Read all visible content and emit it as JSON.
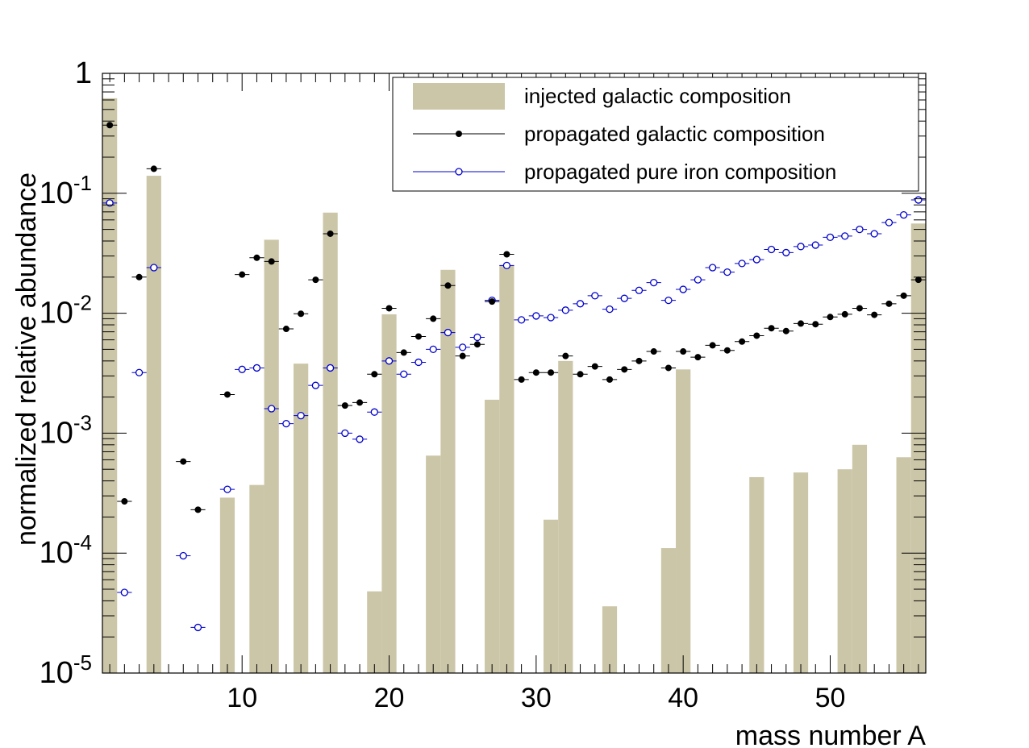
{
  "chart_data": {
    "type": "bar",
    "xlabel": "mass number A",
    "ylabel": "normalized relative abundance",
    "xlim": [
      0.5,
      56.5
    ],
    "ylim": [
      1e-05,
      1
    ],
    "yscale": "log",
    "x_ticks": [
      10,
      20,
      30,
      40,
      50
    ],
    "x_tick_labels": [
      "10",
      "20",
      "30",
      "40",
      "50"
    ],
    "y_ticks": [
      {
        "value": 1,
        "base": "1",
        "exp": ""
      },
      {
        "value": 0.1,
        "base": "10",
        "exp": "-1"
      },
      {
        "value": 0.01,
        "base": "10",
        "exp": "-2"
      },
      {
        "value": 0.001,
        "base": "10",
        "exp": "-3"
      },
      {
        "value": 0.0001,
        "base": "10",
        "exp": "-4"
      },
      {
        "value": 1e-05,
        "base": "10",
        "exp": "-5"
      }
    ],
    "legend": {
      "placement": "top-right",
      "entries": [
        {
          "label": "injected galactic composition",
          "style": "fill"
        },
        {
          "label": "propagated galactic composition",
          "style": "filled-marker"
        },
        {
          "label": "propagated pure iron composition",
          "style": "open-marker"
        }
      ]
    },
    "colors": {
      "bars": "#ccc6a8",
      "galactic": "#000000",
      "iron": "#0000cc"
    },
    "series": [
      {
        "name": "injected galactic composition",
        "kind": "bar",
        "points": [
          [
            1,
            0.62
          ],
          [
            4,
            0.14
          ],
          [
            9,
            0.00029
          ],
          [
            11,
            0.00037
          ],
          [
            12,
            0.041
          ],
          [
            14,
            0.0038
          ],
          [
            16,
            0.069
          ],
          [
            19,
            4.8e-05
          ],
          [
            20,
            0.0098
          ],
          [
            23,
            0.00065
          ],
          [
            24,
            0.023
          ],
          [
            27,
            0.0019
          ],
          [
            28,
            0.025
          ],
          [
            31,
            0.00019
          ],
          [
            32,
            0.004
          ],
          [
            35,
            3.6e-05
          ],
          [
            39,
            0.00011
          ],
          [
            40,
            0.0034
          ],
          [
            45,
            0.00043
          ],
          [
            48,
            0.00047
          ],
          [
            51,
            0.0005
          ],
          [
            52,
            0.0008
          ],
          [
            55,
            0.00063
          ],
          [
            56,
            0.056
          ]
        ]
      },
      {
        "name": "propagated galactic composition",
        "kind": "marker-filled",
        "points": [
          [
            1,
            0.37
          ],
          [
            2,
            0.00027
          ],
          [
            3,
            0.02
          ],
          [
            4,
            0.16
          ],
          [
            6,
            0.00058
          ],
          [
            7,
            0.00023
          ],
          [
            9,
            0.0021
          ],
          [
            10,
            0.021
          ],
          [
            11,
            0.029
          ],
          [
            12,
            0.027
          ],
          [
            13,
            0.0074
          ],
          [
            14,
            0.0099
          ],
          [
            15,
            0.019
          ],
          [
            16,
            0.046
          ],
          [
            17,
            0.0017
          ],
          [
            18,
            0.0018
          ],
          [
            19,
            0.0031
          ],
          [
            20,
            0.011
          ],
          [
            21,
            0.0047
          ],
          [
            22,
            0.0064
          ],
          [
            23,
            0.009
          ],
          [
            24,
            0.017
          ],
          [
            25,
            0.0044
          ],
          [
            26,
            0.0055
          ],
          [
            27,
            0.0125
          ],
          [
            28,
            0.031
          ],
          [
            29,
            0.0028
          ],
          [
            30,
            0.0032
          ],
          [
            31,
            0.0032
          ],
          [
            32,
            0.0044
          ],
          [
            33,
            0.0031
          ],
          [
            34,
            0.0036
          ],
          [
            35,
            0.0028
          ],
          [
            36,
            0.0034
          ],
          [
            37,
            0.004
          ],
          [
            38,
            0.0048
          ],
          [
            39,
            0.0035
          ],
          [
            40,
            0.0048
          ],
          [
            41,
            0.0043
          ],
          [
            42,
            0.0054
          ],
          [
            43,
            0.0049
          ],
          [
            44,
            0.0058
          ],
          [
            45,
            0.0065
          ],
          [
            46,
            0.0075
          ],
          [
            47,
            0.0071
          ],
          [
            48,
            0.0082
          ],
          [
            49,
            0.0081
          ],
          [
            50,
            0.0093
          ],
          [
            51,
            0.0098
          ],
          [
            52,
            0.011
          ],
          [
            53,
            0.0097
          ],
          [
            54,
            0.012
          ],
          [
            55,
            0.014
          ],
          [
            56,
            0.019
          ]
        ]
      },
      {
        "name": "propagated pure iron composition",
        "kind": "marker-open",
        "points": [
          [
            1,
            0.083
          ],
          [
            2,
            4.7e-05
          ],
          [
            3,
            0.0032
          ],
          [
            4,
            0.024
          ],
          [
            6,
            9.5e-05
          ],
          [
            7,
            2.4e-05
          ],
          [
            9,
            0.00034
          ],
          [
            10,
            0.0034
          ],
          [
            11,
            0.0035
          ],
          [
            12,
            0.0016
          ],
          [
            13,
            0.0012
          ],
          [
            14,
            0.0014
          ],
          [
            15,
            0.0025
          ],
          [
            16,
            0.0035
          ],
          [
            17,
            0.001
          ],
          [
            18,
            0.00089
          ],
          [
            19,
            0.0015
          ],
          [
            20,
            0.004
          ],
          [
            21,
            0.0031
          ],
          [
            22,
            0.0039
          ],
          [
            23,
            0.005
          ],
          [
            24,
            0.0069
          ],
          [
            25,
            0.0052
          ],
          [
            26,
            0.0063
          ],
          [
            27,
            0.0128
          ],
          [
            28,
            0.025
          ],
          [
            29,
            0.0088
          ],
          [
            30,
            0.0095
          ],
          [
            31,
            0.0092
          ],
          [
            32,
            0.0106
          ],
          [
            33,
            0.012
          ],
          [
            34,
            0.014
          ],
          [
            35,
            0.0108
          ],
          [
            36,
            0.0133
          ],
          [
            37,
            0.0155
          ],
          [
            38,
            0.018
          ],
          [
            39,
            0.0128
          ],
          [
            40,
            0.0158
          ],
          [
            41,
            0.019
          ],
          [
            42,
            0.024
          ],
          [
            43,
            0.022
          ],
          [
            44,
            0.026
          ],
          [
            45,
            0.028
          ],
          [
            46,
            0.034
          ],
          [
            47,
            0.032
          ],
          [
            48,
            0.036
          ],
          [
            49,
            0.037
          ],
          [
            50,
            0.043
          ],
          [
            51,
            0.044
          ],
          [
            52,
            0.05
          ],
          [
            53,
            0.046
          ],
          [
            54,
            0.057
          ],
          [
            55,
            0.066
          ],
          [
            56,
            0.088
          ]
        ]
      }
    ]
  }
}
